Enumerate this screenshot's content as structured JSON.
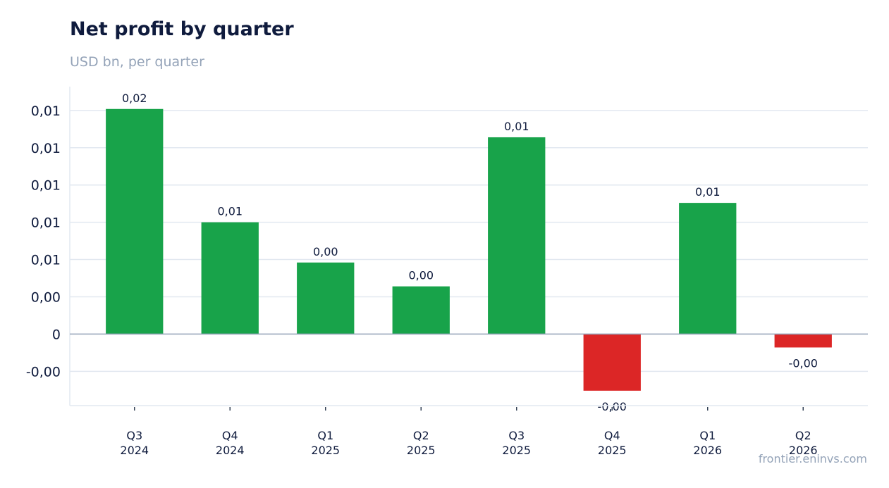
{
  "chart_data": {
    "type": "bar",
    "title": "Net profit by quarter",
    "subtitle": "USD bn, per quarter",
    "categories": [
      [
        "Q3",
        "2024"
      ],
      [
        "Q4",
        "2024"
      ],
      [
        "Q1",
        "2025"
      ],
      [
        "Q2",
        "2025"
      ],
      [
        "Q3",
        "2025"
      ],
      [
        "Q4",
        "2025"
      ],
      [
        "Q1",
        "2026"
      ],
      [
        "Q2",
        "2026"
      ]
    ],
    "values": [
      0.0151,
      0.0075,
      0.0048,
      0.0032,
      0.0132,
      -0.0038,
      0.0088,
      -0.0009
    ],
    "data_labels": [
      "0,02",
      "0,01",
      "0,00",
      "0,00",
      "0,01",
      "-0,00",
      "0,01",
      "-0,00"
    ],
    "y_ticks": [
      {
        "value": -0.0025,
        "label": "-0,00"
      },
      {
        "value": 0,
        "label": "0"
      },
      {
        "value": 0.0025,
        "label": "0,00"
      },
      {
        "value": 0.005,
        "label": "0,01"
      },
      {
        "value": 0.0075,
        "label": "0,01"
      },
      {
        "value": 0.01,
        "label": "0,01"
      },
      {
        "value": 0.0125,
        "label": "0,01"
      },
      {
        "value": 0.015,
        "label": "0,01"
      }
    ],
    "ylim": [
      -0.0048,
      0.0166
    ],
    "grid": true,
    "colors": {
      "positive": "#18a34a",
      "negative": "#dc2626",
      "grid": "#e2e8f0",
      "zero_line": "#94a3b8"
    }
  },
  "footer": {
    "source": "frontier.eninvs.com"
  }
}
